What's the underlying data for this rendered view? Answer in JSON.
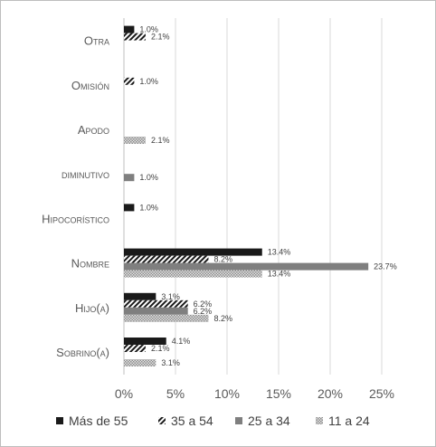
{
  "chart_data": {
    "type": "bar",
    "orientation": "horizontal",
    "categories": [
      "Otra",
      "Omisión",
      "Apodo",
      "diminutivo",
      "Hipocorístico",
      "Nombre",
      "Hijo(a)",
      "Sobrino(a)"
    ],
    "series": [
      {
        "name": "Más de 55",
        "values": [
          1.0,
          null,
          null,
          null,
          1.0,
          13.4,
          3.1,
          4.1
        ],
        "labels": [
          "1.0%",
          "",
          "",
          "",
          "1.0%",
          "13.4%",
          "3.1%",
          "4.1%"
        ],
        "color": "#1a1a1a",
        "pattern": "solid"
      },
      {
        "name": "35 a 54",
        "values": [
          2.1,
          1.0,
          null,
          null,
          null,
          8.2,
          6.2,
          2.1
        ],
        "labels": [
          "2.1%",
          "1.0%",
          "",
          "",
          "",
          "8.2%",
          "6.2%",
          "2.1%"
        ],
        "color": "#1a1a1a",
        "pattern": "diagonal"
      },
      {
        "name": "25 a 34",
        "values": [
          null,
          null,
          null,
          1.0,
          null,
          23.7,
          6.2,
          null
        ],
        "labels": [
          "",
          "",
          "",
          "1.0%",
          "",
          "23.7%",
          "6.2%",
          ""
        ],
        "color": "#7f7f7f",
        "pattern": "solid"
      },
      {
        "name": "11 a 24",
        "values": [
          null,
          null,
          2.1,
          null,
          null,
          13.4,
          8.2,
          3.1
        ],
        "labels": [
          "",
          "",
          "2.1%",
          "",
          "",
          "13.4%",
          "8.2%",
          "3.1%"
        ],
        "color": "#a6a6a6",
        "pattern": "dots"
      }
    ],
    "x_ticks": [
      "0%",
      "5%",
      "10%",
      "15%",
      "20%",
      "25%"
    ],
    "xlim": [
      0,
      25
    ],
    "grid": true,
    "legend": "bottom",
    "title": "",
    "xlabel": "",
    "ylabel": ""
  }
}
